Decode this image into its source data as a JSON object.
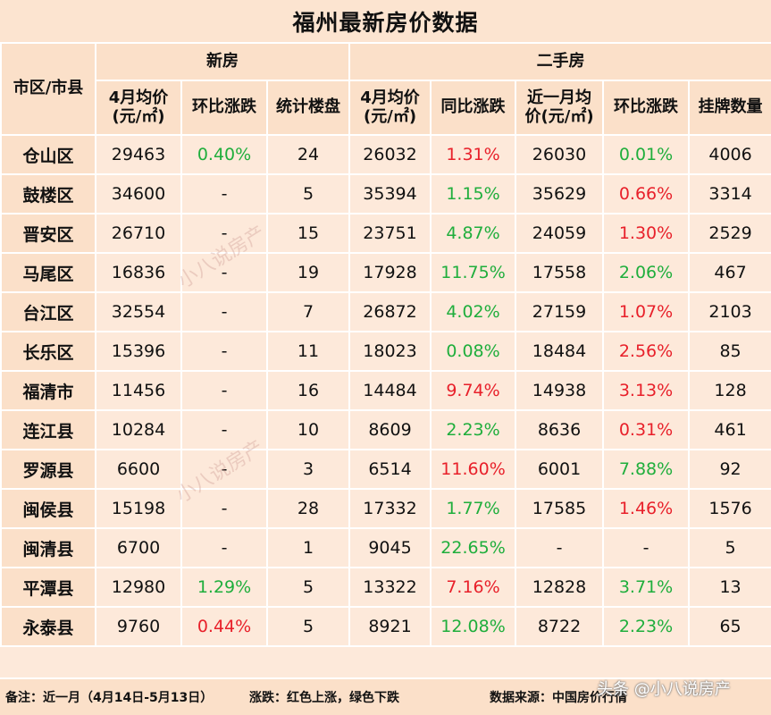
{
  "title": "福州最新房价数据",
  "headers": {
    "area": "市区/市县",
    "new_group": "新房",
    "second_group": "二手房",
    "new_avg": "4月均价\n(元/㎡)",
    "new_mom": "环比涨跌",
    "new_count": "统计楼盘",
    "sec_avg": "4月均价\n(元/㎡)",
    "sec_yoy": "同比涨跌",
    "sec_recent": "近一月均\n价(元/㎡)",
    "sec_mom": "环比涨跌",
    "sec_listings": "挂牌数量"
  },
  "rows": [
    {
      "area": "仓山区",
      "new_avg": "29463",
      "new_mom": "0.40%",
      "new_mom_color": "green",
      "new_count": "24",
      "sec_avg": "26032",
      "sec_yoy": "1.31%",
      "sec_yoy_color": "red",
      "sec_recent": "26030",
      "sec_mom": "0.01%",
      "sec_mom_color": "green",
      "sec_listings": "4006"
    },
    {
      "area": "鼓楼区",
      "new_avg": "34600",
      "new_mom": "-",
      "new_mom_color": "",
      "new_count": "5",
      "sec_avg": "35394",
      "sec_yoy": "1.15%",
      "sec_yoy_color": "green",
      "sec_recent": "35629",
      "sec_mom": "0.66%",
      "sec_mom_color": "red",
      "sec_listings": "3314"
    },
    {
      "area": "晋安区",
      "new_avg": "26710",
      "new_mom": "-",
      "new_mom_color": "",
      "new_count": "15",
      "sec_avg": "23751",
      "sec_yoy": "4.87%",
      "sec_yoy_color": "green",
      "sec_recent": "24059",
      "sec_mom": "1.30%",
      "sec_mom_color": "red",
      "sec_listings": "2529"
    },
    {
      "area": "马尾区",
      "new_avg": "16836",
      "new_mom": "-",
      "new_mom_color": "",
      "new_count": "19",
      "sec_avg": "17928",
      "sec_yoy": "11.75%",
      "sec_yoy_color": "green",
      "sec_recent": "17558",
      "sec_mom": "2.06%",
      "sec_mom_color": "green",
      "sec_listings": "467"
    },
    {
      "area": "台江区",
      "new_avg": "32554",
      "new_mom": "-",
      "new_mom_color": "",
      "new_count": "7",
      "sec_avg": "26872",
      "sec_yoy": "4.02%",
      "sec_yoy_color": "green",
      "sec_recent": "27159",
      "sec_mom": "1.07%",
      "sec_mom_color": "red",
      "sec_listings": "2103"
    },
    {
      "area": "长乐区",
      "new_avg": "15396",
      "new_mom": "-",
      "new_mom_color": "",
      "new_count": "11",
      "sec_avg": "18023",
      "sec_yoy": "0.08%",
      "sec_yoy_color": "green",
      "sec_recent": "18484",
      "sec_mom": "2.56%",
      "sec_mom_color": "red",
      "sec_listings": "85"
    },
    {
      "area": "福清市",
      "new_avg": "11456",
      "new_mom": "-",
      "new_mom_color": "",
      "new_count": "16",
      "sec_avg": "14484",
      "sec_yoy": "9.74%",
      "sec_yoy_color": "red",
      "sec_recent": "14938",
      "sec_mom": "3.13%",
      "sec_mom_color": "red",
      "sec_listings": "128"
    },
    {
      "area": "连江县",
      "new_avg": "10284",
      "new_mom": "-",
      "new_mom_color": "",
      "new_count": "10",
      "sec_avg": "8609",
      "sec_yoy": "2.23%",
      "sec_yoy_color": "green",
      "sec_recent": "8636",
      "sec_mom": "0.31%",
      "sec_mom_color": "red",
      "sec_listings": "461"
    },
    {
      "area": "罗源县",
      "new_avg": "6600",
      "new_mom": "-",
      "new_mom_color": "",
      "new_count": "3",
      "sec_avg": "6514",
      "sec_yoy": "11.60%",
      "sec_yoy_color": "red",
      "sec_recent": "6001",
      "sec_mom": "7.88%",
      "sec_mom_color": "green",
      "sec_listings": "92"
    },
    {
      "area": "闽侯县",
      "new_avg": "15198",
      "new_mom": "-",
      "new_mom_color": "",
      "new_count": "28",
      "sec_avg": "17332",
      "sec_yoy": "1.77%",
      "sec_yoy_color": "green",
      "sec_recent": "17585",
      "sec_mom": "1.46%",
      "sec_mom_color": "red",
      "sec_listings": "1576"
    },
    {
      "area": "闽清县",
      "new_avg": "6700",
      "new_mom": "-",
      "new_mom_color": "",
      "new_count": "1",
      "sec_avg": "9045",
      "sec_yoy": "22.65%",
      "sec_yoy_color": "green",
      "sec_recent": "-",
      "sec_mom": "-",
      "sec_mom_color": "",
      "sec_listings": "5"
    },
    {
      "area": "平潭县",
      "new_avg": "12980",
      "new_mom": "1.29%",
      "new_mom_color": "green",
      "new_count": "5",
      "sec_avg": "13322",
      "sec_yoy": "7.16%",
      "sec_yoy_color": "red",
      "sec_recent": "12828",
      "sec_mom": "3.71%",
      "sec_mom_color": "green",
      "sec_listings": "13"
    },
    {
      "area": "永泰县",
      "new_avg": "9760",
      "new_mom": "0.44%",
      "new_mom_color": "red",
      "new_count": "5",
      "sec_avg": "8921",
      "sec_yoy": "12.08%",
      "sec_yoy_color": "green",
      "sec_recent": "8722",
      "sec_mom": "2.23%",
      "sec_mom_color": "green",
      "sec_listings": "65"
    }
  ],
  "footer": {
    "note": "备注：近一月（4月14日-5月13日）",
    "legend": "涨跌：红色上涨，绿色下跌",
    "source": "数据来源：中国房价行情"
  },
  "watermark": "小八说房产",
  "brand": "头条 @小八说房产",
  "colors": {
    "up": "#e8202a",
    "down": "#1fae3c",
    "background": "#fde9da",
    "header": "#fbe0c9"
  }
}
